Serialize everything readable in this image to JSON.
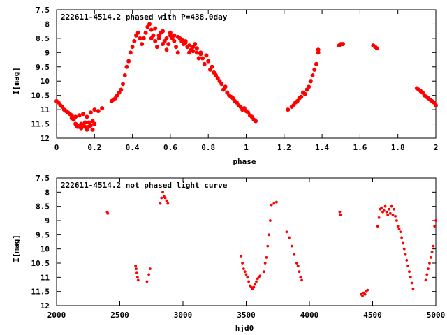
{
  "colors": {
    "data": "#ff0000",
    "axes": "#000000",
    "background": "#ffffff"
  },
  "chart_data": [
    {
      "type": "scatter",
      "title": "222611-4514.2 phased with P=438.0day",
      "xlabel": "phase",
      "ylabel": "I[mag]",
      "xlim": [
        0,
        2
      ],
      "ylim": [
        12,
        7.5
      ],
      "y_inverted": true,
      "grid": false,
      "marker": "filled-circle-large",
      "xticks": [
        "0",
        "0.2",
        "0.4",
        "0.6",
        "0.8",
        "1",
        "1.2",
        "1.4",
        "1.6",
        "1.8",
        "2"
      ],
      "yticks": [
        "7.5",
        "8",
        "8.5",
        "9",
        "9.5",
        "10",
        "10.5",
        "11",
        "11.5",
        "12"
      ],
      "points": [
        [
          0.0,
          10.7
        ],
        [
          0.01,
          10.75
        ],
        [
          0.02,
          10.85
        ],
        [
          0.03,
          10.9
        ],
        [
          0.04,
          11.0
        ],
        [
          0.05,
          11.05
        ],
        [
          0.06,
          11.1
        ],
        [
          0.07,
          11.15
        ],
        [
          0.08,
          11.3
        ],
        [
          0.09,
          11.35
        ],
        [
          0.1,
          11.5
        ],
        [
          0.11,
          11.55
        ],
        [
          0.12,
          11.6
        ],
        [
          0.13,
          11.65
        ],
        [
          0.14,
          11.55
        ],
        [
          0.15,
          11.6
        ],
        [
          0.16,
          11.7
        ],
        [
          0.17,
          11.45
        ],
        [
          0.18,
          11.55
        ],
        [
          0.19,
          11.7
        ],
        [
          0.2,
          11.5
        ],
        [
          0.08,
          11.2
        ],
        [
          0.1,
          11.25
        ],
        [
          0.12,
          11.2
        ],
        [
          0.14,
          11.15
        ],
        [
          0.16,
          11.25
        ],
        [
          0.18,
          11.1
        ],
        [
          0.2,
          11.0
        ],
        [
          0.22,
          11.05
        ],
        [
          0.24,
          10.95
        ],
        [
          0.11,
          11.6
        ],
        [
          0.13,
          11.5
        ],
        [
          0.15,
          11.45
        ],
        [
          0.17,
          11.6
        ],
        [
          0.19,
          11.4
        ],
        [
          0.29,
          10.7
        ],
        [
          0.3,
          10.65
        ],
        [
          0.31,
          10.6
        ],
        [
          0.32,
          10.5
        ],
        [
          0.33,
          10.4
        ],
        [
          0.34,
          10.3
        ],
        [
          0.35,
          10.1
        ],
        [
          0.36,
          9.8
        ],
        [
          0.37,
          9.5
        ],
        [
          0.38,
          9.3
        ],
        [
          0.39,
          9.0
        ],
        [
          0.4,
          8.8
        ],
        [
          0.41,
          8.6
        ],
        [
          0.42,
          8.4
        ],
        [
          0.43,
          8.3
        ],
        [
          0.44,
          8.5
        ],
        [
          0.45,
          8.7
        ],
        [
          0.46,
          8.5
        ],
        [
          0.47,
          8.3
        ],
        [
          0.48,
          8.1
        ],
        [
          0.49,
          8.0
        ],
        [
          0.5,
          8.2
        ],
        [
          0.51,
          8.4
        ],
        [
          0.52,
          8.6
        ],
        [
          0.53,
          8.8
        ],
        [
          0.54,
          8.5
        ],
        [
          0.55,
          8.3
        ],
        [
          0.56,
          8.25
        ],
        [
          0.57,
          8.6
        ],
        [
          0.58,
          8.9
        ],
        [
          0.59,
          8.7
        ],
        [
          0.6,
          8.4
        ],
        [
          0.61,
          8.5
        ],
        [
          0.62,
          8.6
        ],
        [
          0.63,
          8.8
        ],
        [
          0.64,
          9.0
        ],
        [
          0.65,
          8.5
        ],
        [
          0.66,
          8.6
        ],
        [
          0.67,
          8.7
        ],
        [
          0.68,
          8.6
        ],
        [
          0.69,
          8.8
        ],
        [
          0.7,
          9.0
        ],
        [
          0.71,
          8.9
        ],
        [
          0.72,
          8.8
        ],
        [
          0.73,
          8.7
        ],
        [
          0.74,
          9.0
        ],
        [
          0.75,
          9.2
        ],
        [
          0.76,
          9.0
        ],
        [
          0.77,
          9.2
        ],
        [
          0.78,
          9.4
        ],
        [
          0.79,
          9.1
        ],
        [
          0.8,
          9.3
        ],
        [
          0.81,
          9.6
        ],
        [
          0.82,
          9.5
        ],
        [
          0.83,
          9.7
        ],
        [
          0.84,
          9.8
        ],
        [
          0.85,
          9.9
        ],
        [
          0.86,
          10.0
        ],
        [
          0.87,
          10.1
        ],
        [
          0.88,
          10.3
        ],
        [
          0.89,
          10.2
        ],
        [
          0.9,
          10.4
        ],
        [
          0.91,
          10.5
        ],
        [
          0.92,
          10.55
        ],
        [
          0.93,
          10.6
        ],
        [
          0.94,
          10.7
        ],
        [
          0.95,
          10.75
        ],
        [
          0.96,
          10.85
        ],
        [
          0.97,
          10.9
        ],
        [
          0.98,
          11.0
        ],
        [
          0.99,
          10.95
        ],
        [
          1.0,
          11.05
        ],
        [
          1.01,
          11.1
        ],
        [
          1.02,
          11.2
        ],
        [
          1.03,
          11.25
        ],
        [
          1.04,
          11.35
        ],
        [
          1.05,
          11.4
        ],
        [
          0.5,
          8.5
        ],
        [
          0.52,
          8.15
        ],
        [
          0.54,
          8.4
        ],
        [
          0.56,
          8.7
        ],
        [
          0.58,
          8.5
        ],
        [
          0.6,
          8.3
        ],
        [
          0.62,
          8.4
        ],
        [
          0.64,
          8.45
        ],
        [
          0.66,
          8.55
        ],
        [
          0.68,
          8.65
        ],
        [
          0.7,
          8.75
        ],
        [
          0.72,
          8.95
        ],
        [
          0.74,
          8.85
        ],
        [
          0.76,
          9.05
        ],
        [
          1.22,
          11.0
        ],
        [
          1.24,
          10.9
        ],
        [
          1.25,
          10.85
        ],
        [
          1.26,
          10.75
        ],
        [
          1.27,
          10.7
        ],
        [
          1.28,
          10.6
        ],
        [
          1.29,
          10.55
        ],
        [
          1.3,
          10.4
        ],
        [
          1.31,
          10.45
        ],
        [
          1.32,
          10.3
        ],
        [
          1.33,
          10.2
        ],
        [
          1.34,
          10.0
        ],
        [
          1.35,
          9.8
        ],
        [
          1.36,
          9.6
        ],
        [
          1.37,
          9.4
        ],
        [
          1.38,
          8.9
        ],
        [
          1.38,
          9.0
        ],
        [
          1.49,
          8.75
        ],
        [
          1.5,
          8.7
        ],
        [
          1.51,
          8.7
        ],
        [
          1.67,
          8.75
        ],
        [
          1.68,
          8.8
        ],
        [
          1.69,
          8.85
        ],
        [
          1.9,
          10.25
        ],
        [
          1.91,
          10.3
        ],
        [
          1.92,
          10.35
        ],
        [
          1.93,
          10.4
        ],
        [
          1.94,
          10.5
        ],
        [
          1.95,
          10.55
        ],
        [
          1.96,
          10.6
        ],
        [
          1.97,
          10.65
        ],
        [
          1.98,
          10.7
        ],
        [
          1.99,
          10.75
        ],
        [
          2.0,
          10.85
        ]
      ]
    },
    {
      "type": "scatter",
      "title": "222611-4514.2 not phased light curve",
      "xlabel": "hjd0",
      "ylabel": "I[mag]",
      "xlim": [
        2000,
        5000
      ],
      "ylim": [
        12,
        7.5
      ],
      "y_inverted": true,
      "grid": false,
      "marker": "filled-circle-small",
      "xticks": [
        "2000",
        "2500",
        "3000",
        "3500",
        "4000",
        "4500",
        "5000"
      ],
      "yticks": [
        "7.5",
        "8",
        "8.5",
        "9",
        "9.5",
        "10",
        "10.5",
        "11",
        "11.5",
        "12"
      ],
      "points": [
        [
          2400,
          8.7
        ],
        [
          2405,
          8.75
        ],
        [
          2625,
          10.6
        ],
        [
          2630,
          10.7
        ],
        [
          2635,
          10.85
        ],
        [
          2640,
          11.0
        ],
        [
          2645,
          11.1
        ],
        [
          2715,
          11.15
        ],
        [
          2730,
          10.9
        ],
        [
          2740,
          10.7
        ],
        [
          2820,
          8.4
        ],
        [
          2830,
          8.2
        ],
        [
          2840,
          8.0
        ],
        [
          2850,
          8.15
        ],
        [
          2860,
          8.2
        ],
        [
          2870,
          8.3
        ],
        [
          2880,
          8.4
        ],
        [
          3460,
          10.25
        ],
        [
          3470,
          10.5
        ],
        [
          3480,
          10.7
        ],
        [
          3490,
          10.8
        ],
        [
          3500,
          10.9
        ],
        [
          3510,
          11.0
        ],
        [
          3520,
          11.15
        ],
        [
          3530,
          11.3
        ],
        [
          3540,
          11.35
        ],
        [
          3550,
          11.4
        ],
        [
          3560,
          11.35
        ],
        [
          3570,
          11.25
        ],
        [
          3580,
          11.15
        ],
        [
          3590,
          11.05
        ],
        [
          3600,
          11.0
        ],
        [
          3610,
          10.95
        ],
        [
          3640,
          10.8
        ],
        [
          3650,
          10.5
        ],
        [
          3660,
          10.3
        ],
        [
          3670,
          9.9
        ],
        [
          3680,
          9.5
        ],
        [
          3690,
          9.0
        ],
        [
          3700,
          8.45
        ],
        [
          3720,
          8.4
        ],
        [
          3740,
          8.35
        ],
        [
          3820,
          9.4
        ],
        [
          3840,
          9.6
        ],
        [
          3860,
          9.9
        ],
        [
          3880,
          10.2
        ],
        [
          3900,
          10.5
        ],
        [
          3910,
          10.6
        ],
        [
          3920,
          10.8
        ],
        [
          3930,
          11.0
        ],
        [
          3940,
          11.1
        ],
        [
          4240,
          8.7
        ],
        [
          4245,
          8.8
        ],
        [
          4410,
          11.6
        ],
        [
          4420,
          11.65
        ],
        [
          4430,
          11.55
        ],
        [
          4440,
          11.6
        ],
        [
          4450,
          11.5
        ],
        [
          4460,
          11.45
        ],
        [
          4540,
          9.2
        ],
        [
          4550,
          8.9
        ],
        [
          4560,
          8.6
        ],
        [
          4570,
          8.55
        ],
        [
          4580,
          8.7
        ],
        [
          4590,
          8.65
        ],
        [
          4600,
          8.5
        ],
        [
          4610,
          8.7
        ],
        [
          4620,
          8.8
        ],
        [
          4630,
          8.6
        ],
        [
          4640,
          8.75
        ],
        [
          4650,
          8.5
        ],
        [
          4660,
          8.8
        ],
        [
          4670,
          8.6
        ],
        [
          4680,
          8.85
        ],
        [
          4690,
          9.0
        ],
        [
          4700,
          9.2
        ],
        [
          4710,
          9.3
        ],
        [
          4720,
          9.4
        ],
        [
          4730,
          9.6
        ],
        [
          4740,
          9.8
        ],
        [
          4750,
          10.0
        ],
        [
          4760,
          10.2
        ],
        [
          4770,
          10.4
        ],
        [
          4780,
          10.6
        ],
        [
          4790,
          10.8
        ],
        [
          4800,
          11.0
        ],
        [
          4810,
          11.2
        ],
        [
          4820,
          11.4
        ],
        [
          4920,
          11.1
        ],
        [
          4930,
          10.9
        ],
        [
          4940,
          10.7
        ],
        [
          4950,
          10.5
        ],
        [
          4960,
          10.3
        ],
        [
          4970,
          10.1
        ],
        [
          4980,
          9.9
        ],
        [
          4990,
          9.2
        ],
        [
          5000,
          9.0
        ]
      ]
    }
  ]
}
